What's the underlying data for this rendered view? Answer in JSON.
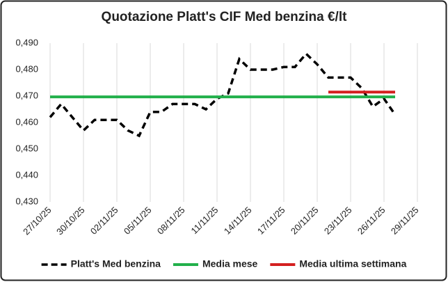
{
  "chart_data": {
    "type": "line",
    "title": "Quotazione Platt's CIF Med benzina €/lt",
    "xlim": [
      "27/10/25",
      "29/11/25"
    ],
    "xticks": [
      "27/10/25",
      "30/10/25",
      "02/11/25",
      "05/11/25",
      "08/11/25",
      "11/11/25",
      "14/11/25",
      "17/11/25",
      "20/11/25",
      "23/11/25",
      "26/11/25",
      "29/11/25"
    ],
    "ylim": [
      0.43,
      0.49
    ],
    "yticks": [
      {
        "value": 0.43,
        "label": "0,430"
      },
      {
        "value": 0.44,
        "label": "0,440"
      },
      {
        "value": 0.45,
        "label": "0,450"
      },
      {
        "value": 0.46,
        "label": "0,460"
      },
      {
        "value": 0.47,
        "label": "0,470"
      },
      {
        "value": 0.48,
        "label": "0,480"
      },
      {
        "value": 0.49,
        "label": "0,490"
      }
    ],
    "grid": "x",
    "legend": "bottom",
    "series": [
      {
        "name": "Platt's Med benzina",
        "color": "#000000",
        "dash": true,
        "x": [
          "27/10/25",
          "28/10/25",
          "30/10/25",
          "31/10/25",
          "02/11/25",
          "03/11/25",
          "04/11/25",
          "05/11/25",
          "06/11/25",
          "07/11/25",
          "09/11/25",
          "10/11/25",
          "11/11/25",
          "12/11/25",
          "13/11/25",
          "14/11/25",
          "16/11/25",
          "17/11/25",
          "18/11/25",
          "19/11/25",
          "20/11/25",
          "21/11/25",
          "23/11/25",
          "24/11/25",
          "25/11/25",
          "26/11/25",
          "27/11/25"
        ],
        "values": [
          0.462,
          0.467,
          0.457,
          0.461,
          0.461,
          0.457,
          0.455,
          0.464,
          0.464,
          0.467,
          0.467,
          0.465,
          0.469,
          0.471,
          0.484,
          0.48,
          0.48,
          0.481,
          0.481,
          0.486,
          0.482,
          0.477,
          0.477,
          0.473,
          0.466,
          0.469,
          0.463
        ]
      },
      {
        "name": "Media mese",
        "color": "#22b04b",
        "dash": false,
        "x": [
          "27/10/25",
          "27/11/25"
        ],
        "values": [
          0.4697,
          0.4697
        ]
      },
      {
        "name": "Media ultima settimana",
        "color": "#d42020",
        "dash": false,
        "x": [
          "21/11/25",
          "27/11/25"
        ],
        "values": [
          0.4715,
          0.4715
        ]
      }
    ]
  }
}
